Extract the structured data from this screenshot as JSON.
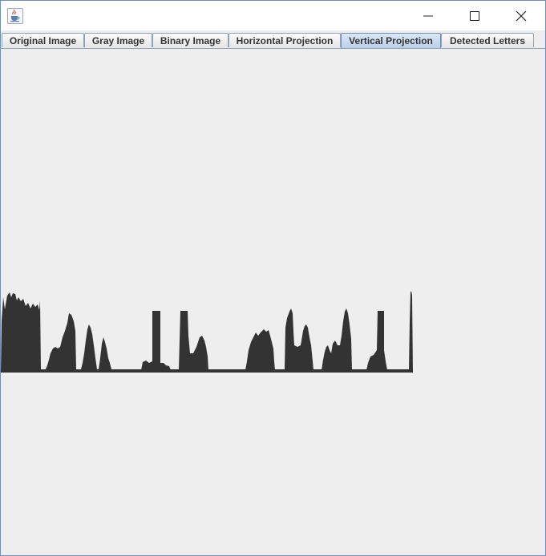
{
  "window": {
    "icon": "java-coffee-cup-icon",
    "controls": [
      "minimize-icon",
      "maximize-icon",
      "close-icon"
    ]
  },
  "tabs": [
    {
      "label": "Original Image",
      "active": false
    },
    {
      "label": "Gray Image",
      "active": false
    },
    {
      "label": "Binary Image",
      "active": false
    },
    {
      "label": "Horizontal Projection",
      "active": false
    },
    {
      "label": "Vertical Projection",
      "active": true
    },
    {
      "label": "Detected Letters",
      "active": false
    }
  ],
  "colors": {
    "projection_fill": "#333333",
    "background": "#eeeeee",
    "active_tab": "#b9cfe9",
    "border": "#6f8fb5"
  }
}
